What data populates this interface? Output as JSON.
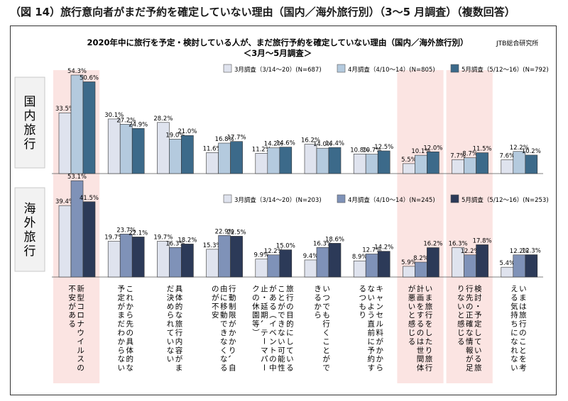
{
  "figure_title": "（図 14）旅行意向者がまだ予約を確定していない理由（国内／海外旅行別）（3～5 月調査）（複数回答）",
  "source": "JTB総合研究所",
  "chart_data": {
    "type": "bar",
    "title": "2020年中に旅行を予定・検討している人が、まだ旅行予約を確定していない理由（国内／海外旅行別）",
    "subtitle": "＜3月～5月調査＞",
    "categories": [
      "新型コロナウイルスの不安がある",
      "これから先の具体的な予定がまだわからない",
      "具体的な旅行内容がまだ決められていない",
      "行動制限がかかり、自由に移動できなくなるのが不安",
      "旅行の目的にしていることができない可能性がある（イベントの中止・延期、テーマパークの休園等）",
      "いつでも行くことができるから",
      "キャンセル料がかからないよう直前に予約するつもり",
      "いま旅行をしたり旅行計画をするのは世間体が悪いと感じる",
      "検討・予定している旅行先の正確な情報が足りないと感じる",
      "いまは旅行のことを考える気持ちになれない"
    ],
    "panels": [
      {
        "name": "国内旅行",
        "series": [
          {
            "name": "3月調査（3/14～20）(N=687)",
            "color": "#dfe3ee",
            "values": [
              33.5,
              30.1,
              28.2,
              11.6,
              11.2,
              16.2,
              10.8,
              5.5,
              7.7,
              7.6
            ]
          },
          {
            "name": "4月調査（4/10～14）(N=805)",
            "color": "#b4cade",
            "values": [
              54.3,
              27.2,
              19.0,
              16.8,
              14.2,
              14.0,
              10.7,
              10.1,
              8.7,
              12.2
            ]
          },
          {
            "name": "5月調査（5/12～16）(N=792)",
            "color": "#3c6a8a",
            "values": [
              50.6,
              24.9,
              21.0,
              17.7,
              14.6,
              14.4,
              12.5,
              12.0,
              11.5,
              10.2
            ]
          }
        ]
      },
      {
        "name": "海外旅行",
        "series": [
          {
            "name": "3月調査（3/14～20）(N=203)",
            "color": "#dfe3ee",
            "values": [
              39.4,
              19.7,
              19.7,
              15.3,
              9.9,
              9.4,
              8.9,
              5.9,
              16.3,
              5.4
            ]
          },
          {
            "name": "4月調査（4/10～14）(N=245)",
            "color": "#7f92b8",
            "values": [
              53.1,
              23.7,
              16.3,
              22.9,
              12.2,
              16.3,
              12.7,
              8.2,
              12.2,
              12.2
            ]
          },
          {
            "name": "5月調査（5/12～16）(N=253)",
            "color": "#2c3a58",
            "values": [
              41.5,
              22.1,
              18.2,
              22.5,
              15.0,
              18.6,
              14.2,
              16.2,
              17.8,
              12.3
            ]
          }
        ]
      }
    ],
    "highlighted_categories": [
      0,
      7,
      8
    ],
    "highlight_color": "#fbe4e2",
    "ylim": [
      0,
      60
    ],
    "grid": false,
    "legend": "top-right"
  }
}
